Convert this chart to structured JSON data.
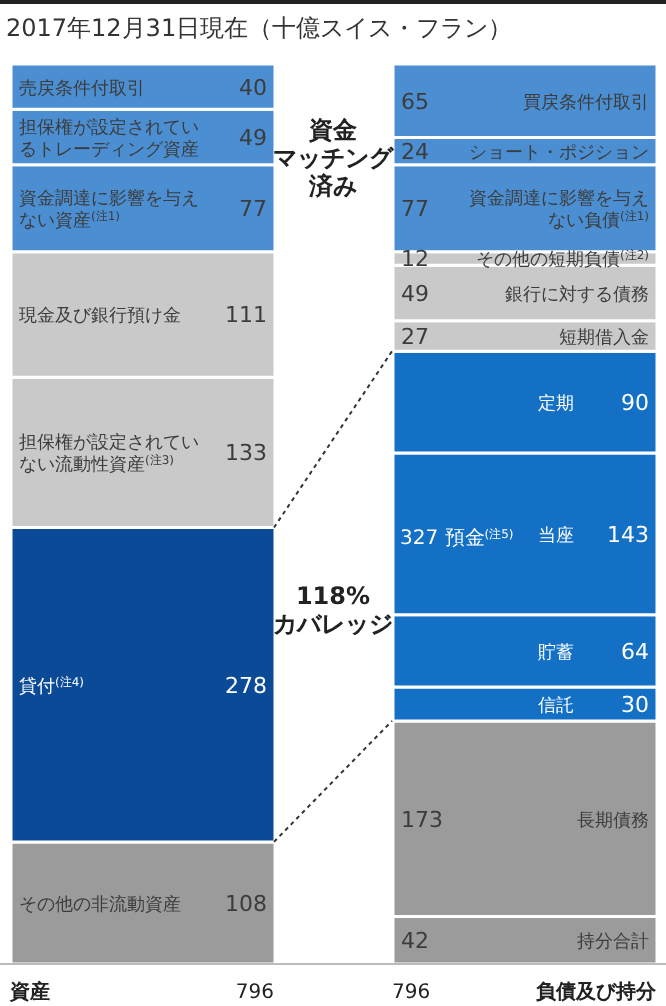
{
  "chart_data": {
    "type": "bar",
    "stacked": true,
    "title": "2017年12月31日現在（十億スイス・フラン）",
    "categories": [
      "資産",
      "負債及び持分"
    ],
    "data_labels": true,
    "totals": [
      "796",
      "796"
    ],
    "series": [
      {
        "name": "その他の非流動資産",
        "color": "#9b9b9b",
        "values": [
          108,
          null
        ]
      },
      {
        "name": "貸付$^{(注4)}$",
        "color": "#0b4a97",
        "values": [
          278,
          null
        ]
      },
      {
        "name": "担保権が設定されていない流動性資産$^{(注3)}$",
        "color": "#c9c9c9",
        "values": [
          133,
          null
        ]
      },
      {
        "name": "現金及び銀行預け金",
        "color": "#c9c9c9",
        "values": [
          111,
          null
        ]
      },
      {
        "name": "資金調達に影響を与えない資産$^{(注1)}$",
        "color": "#4b8fd2",
        "values": [
          77,
          null
        ]
      },
      {
        "name": "担保権が設定されているトレーディング資産",
        "color": "#4b8fd2",
        "values": [
          49,
          null
        ]
      },
      {
        "name": "売戻条件付取引",
        "color": "#4b8fd2",
        "values": [
          40,
          null
        ]
      },
      {
        "name": "持分合計",
        "color": "#9b9b9b",
        "values": [
          null,
          42
        ]
      },
      {
        "name": "長期債務",
        "color": "#9b9b9b",
        "values": [
          null,
          173
        ]
      },
      {
        "name": "信託",
        "color": "#1370c4",
        "values": [
          null,
          30
        ]
      },
      {
        "name": "貯蓄",
        "color": "#1370c4",
        "values": [
          null,
          64
        ]
      },
      {
        "name": "当座",
        "color": "#1370c4",
        "values": [
          null,
          143
        ]
      },
      {
        "name": "定期",
        "color": "#1370c4",
        "values": [
          null,
          90
        ]
      },
      {
        "name": "短期借入金",
        "color": "#c9c9c9",
        "values": [
          null,
          27
        ]
      },
      {
        "name": "銀行に対する債務",
        "color": "#c9c9c9",
        "values": [
          null,
          49
        ]
      },
      {
        "name": "その他の短期負債$^{(注2)}$",
        "color": "#c9c9c9",
        "values": [
          null,
          12
        ]
      },
      {
        "name": "資金調達に影響を与えない負債$^{(注1)}$",
        "color": "#4b8fd2",
        "values": [
          null,
          77
        ]
      },
      {
        "name": "ショート・ポジション",
        "color": "#4b8fd2",
        "values": [
          null,
          24
        ]
      },
      {
        "name": "買戻条件付取引",
        "color": "#4b8fd2",
        "values": [
          null,
          65
        ]
      }
    ],
    "annotations": [
      "資金マッチング済み",
      "118% カバレッジ",
      "327 預金$^{(注5)}$"
    ]
  }
}
